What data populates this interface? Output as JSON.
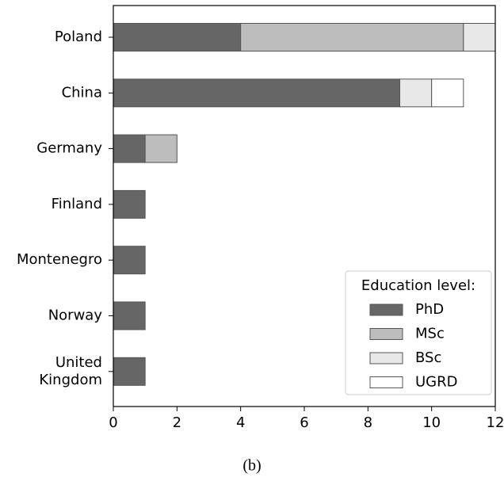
{
  "chart_data": {
    "type": "stacked-barh",
    "caption": "(b)",
    "categories": [
      "Poland",
      "China",
      "Germany",
      "Finland",
      "Montenegro",
      "Norway",
      "United\nKingdom"
    ],
    "series": [
      {
        "name": "PhD",
        "color": "#666666",
        "values": [
          4,
          9,
          1,
          1,
          1,
          1,
          1
        ]
      },
      {
        "name": "MSc",
        "color": "#bdbdbd",
        "values": [
          7,
          0,
          1,
          0,
          0,
          0,
          0
        ]
      },
      {
        "name": "BSc",
        "color": "#e8e8e8",
        "values": [
          1,
          1,
          0,
          0,
          0,
          0,
          0
        ]
      },
      {
        "name": "UGRD",
        "color": "#ffffff",
        "values": [
          0,
          1,
          0,
          0,
          0,
          0,
          0
        ]
      }
    ],
    "legend_title": "Education level:",
    "legend_position": "lower right",
    "xlim": [
      0,
      12
    ],
    "xticks": [
      0,
      2,
      4,
      6,
      8,
      10,
      12
    ]
  }
}
